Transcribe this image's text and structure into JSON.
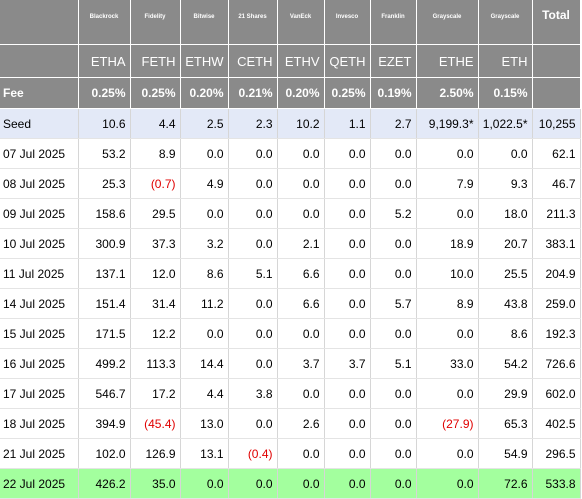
{
  "table": {
    "columns": [
      {
        "issuer": "Blackrock",
        "ticker": "ETHA",
        "fee": "0.25%"
      },
      {
        "issuer": "Fidelity",
        "ticker": "FETH",
        "fee": "0.25%"
      },
      {
        "issuer": "Bitwise",
        "ticker": "ETHW",
        "fee": "0.20%"
      },
      {
        "issuer": "21 Shares",
        "ticker": "CETH",
        "fee": "0.21%"
      },
      {
        "issuer": "VanEck",
        "ticker": "ETHV",
        "fee": "0.20%"
      },
      {
        "issuer": "Invesco",
        "ticker": "QETH",
        "fee": "0.25%"
      },
      {
        "issuer": "Franklin",
        "ticker": "EZET",
        "fee": "0.19%"
      },
      {
        "issuer": "Grayscale",
        "ticker": "ETHE",
        "fee": "2.50%"
      },
      {
        "issuer": "Grayscale",
        "ticker": "ETH",
        "fee": "0.15%"
      }
    ],
    "total_header": "Total",
    "fee_label": "Fee",
    "rows": [
      {
        "label": "Seed",
        "cells": [
          "10.6",
          "4.4",
          "2.5",
          "2.3",
          "10.2",
          "1.1",
          "2.7",
          "9,199.3*",
          "1,022.5*",
          "10,255"
        ]
      },
      {
        "label": "07 Jul 2025",
        "cells": [
          "53.2",
          "8.9",
          "0.0",
          "0.0",
          "0.0",
          "0.0",
          "0.0",
          "0.0",
          "0.0",
          "62.1"
        ]
      },
      {
        "label": "08 Jul 2025",
        "cells": [
          "25.3",
          "(0.7)",
          "4.9",
          "0.0",
          "0.0",
          "0.0",
          "0.0",
          "7.9",
          "9.3",
          "46.7"
        ]
      },
      {
        "label": "09 Jul 2025",
        "cells": [
          "158.6",
          "29.5",
          "0.0",
          "0.0",
          "0.0",
          "0.0",
          "5.2",
          "0.0",
          "18.0",
          "211.3"
        ]
      },
      {
        "label": "10 Jul 2025",
        "cells": [
          "300.9",
          "37.3",
          "3.2",
          "0.0",
          "2.1",
          "0.0",
          "0.0",
          "18.9",
          "20.7",
          "383.1"
        ]
      },
      {
        "label": "11 Jul 2025",
        "cells": [
          "137.1",
          "12.0",
          "8.6",
          "5.1",
          "6.6",
          "0.0",
          "0.0",
          "10.0",
          "25.5",
          "204.9"
        ]
      },
      {
        "label": "14 Jul 2025",
        "cells": [
          "151.4",
          "31.4",
          "11.2",
          "0.0",
          "6.6",
          "0.0",
          "5.7",
          "8.9",
          "43.8",
          "259.0"
        ]
      },
      {
        "label": "15 Jul 2025",
        "cells": [
          "171.5",
          "12.2",
          "0.0",
          "0.0",
          "0.0",
          "0.0",
          "0.0",
          "0.0",
          "8.6",
          "192.3"
        ]
      },
      {
        "label": "16 Jul 2025",
        "cells": [
          "499.2",
          "113.3",
          "14.4",
          "0.0",
          "3.7",
          "3.7",
          "5.1",
          "33.0",
          "54.2",
          "726.6"
        ]
      },
      {
        "label": "17 Jul 2025",
        "cells": [
          "546.7",
          "17.2",
          "4.4",
          "3.8",
          "0.0",
          "0.0",
          "0.0",
          "0.0",
          "29.9",
          "602.0"
        ]
      },
      {
        "label": "18 Jul 2025",
        "cells": [
          "394.9",
          "(45.4)",
          "13.0",
          "0.0",
          "2.6",
          "0.0",
          "0.0",
          "(27.9)",
          "65.3",
          "402.5"
        ]
      },
      {
        "label": "21 Jul 2025",
        "cells": [
          "102.0",
          "126.9",
          "13.1",
          "(0.4)",
          "0.0",
          "0.0",
          "0.0",
          "0.0",
          "54.9",
          "296.5"
        ]
      },
      {
        "label": "22 Jul 2025",
        "cells": [
          "426.2",
          "35.0",
          "0.0",
          "0.0",
          "0.0",
          "0.0",
          "0.0",
          "0.0",
          "72.6",
          "533.8"
        ]
      }
    ]
  }
}
